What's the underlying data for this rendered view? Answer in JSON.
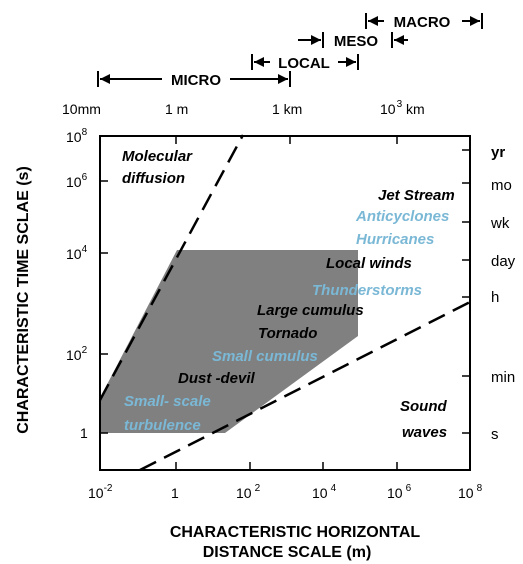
{
  "axes": {
    "x_title_line1": "CHARACTERISTIC HORIZONTAL",
    "x_title_line2": "DISTANCE SCALE (m)",
    "y_title": "CHARACTERISTIC TIME SCLAE (s)",
    "x_ticks": [
      {
        "base": "10",
        "exp": "-2"
      },
      {
        "base": "1",
        "exp": ""
      },
      {
        "base": "10",
        "exp": "2"
      },
      {
        "base": "10",
        "exp": "4"
      },
      {
        "base": "10",
        "exp": "6"
      },
      {
        "base": "10",
        "exp": "8"
      }
    ],
    "y_ticks": [
      {
        "base": "1",
        "exp": ""
      },
      {
        "base": "10",
        "exp": "2"
      },
      {
        "base": "10",
        "exp": "4"
      },
      {
        "base": "10",
        "exp": "6"
      },
      {
        "base": "10",
        "exp": "8"
      }
    ],
    "top_ticks": [
      {
        "label": "10mm",
        "exp": ""
      },
      {
        "label": "1 m",
        "exp": ""
      },
      {
        "label": "1 km",
        "exp": ""
      },
      {
        "label": "10",
        "exp": "3",
        "suffix": " km"
      }
    ],
    "right_ticks": [
      "yr",
      "mo",
      "wk",
      "day",
      "h",
      "min",
      "s"
    ]
  },
  "scales": {
    "micro": "MICRO",
    "local": "LOCAL",
    "meso": "MESO",
    "macro": "MACRO"
  },
  "regions": {
    "molecular_line1": "Molecular",
    "molecular_line2": "diffusion",
    "sound_line1": "Sound",
    "sound_line2": "waves"
  },
  "phenomena": [
    {
      "name": "Jet Stream",
      "color": "black"
    },
    {
      "name": "Anticyclones",
      "color": "blue"
    },
    {
      "name": "Hurricanes",
      "color": "blue"
    },
    {
      "name": "Local winds",
      "color": "black"
    },
    {
      "name": "Thunderstorms",
      "color": "blue"
    },
    {
      "name": "Large cumulus",
      "color": "black"
    },
    {
      "name": "Tornado",
      "color": "black"
    },
    {
      "name": "Small cumulus",
      "color": "blue"
    },
    {
      "name": "Dust -devil",
      "color": "black"
    },
    {
      "name": "Small- scale",
      "color": "blue"
    },
    {
      "name": "turbulence",
      "color": "blue"
    }
  ],
  "colors": {
    "shade": "#808080",
    "blue_label": "#7ab8d6",
    "black_label": "#000000"
  }
}
